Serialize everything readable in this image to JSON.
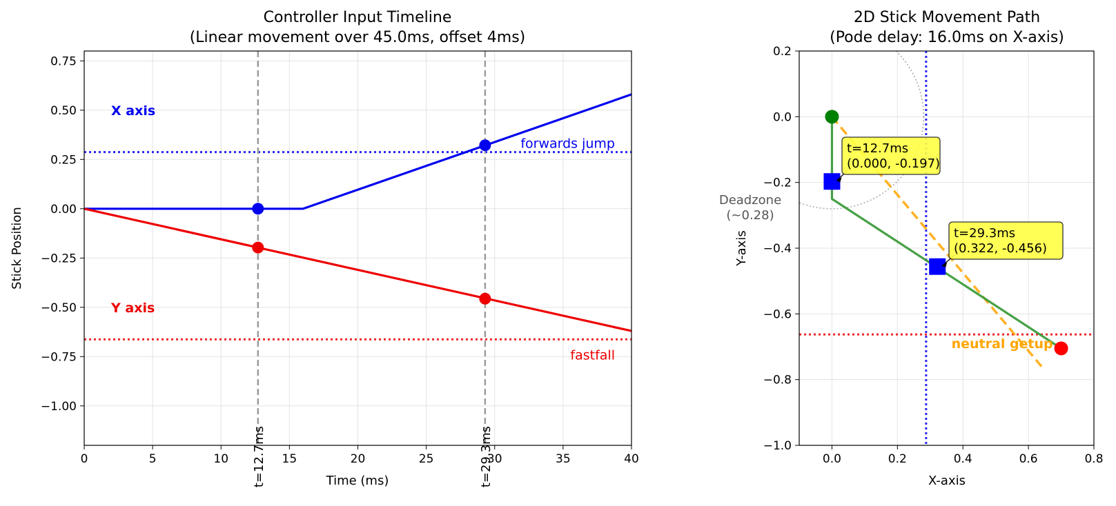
{
  "chart_data": [
    {
      "type": "line",
      "title": "Controller Input Timeline",
      "subtitle": "(Linear movement over 45.0ms, offset 4ms)",
      "xlabel": "Time (ms)",
      "ylabel": "Stick Position",
      "xlim": [
        0,
        40
      ],
      "ylim": [
        -1.2,
        0.8
      ],
      "xticks": [
        0,
        5,
        10,
        15,
        20,
        25,
        30,
        35,
        40
      ],
      "yticks": [
        -1.0,
        -0.75,
        -0.5,
        -0.25,
        0.0,
        0.25,
        0.5,
        0.75
      ],
      "grid": true,
      "series": [
        {
          "name": "X axis",
          "color": "#0000ee",
          "x": [
            0,
            16,
            40
          ],
          "y": [
            0,
            0,
            0.58
          ]
        },
        {
          "name": "Y axis",
          "color": "#ee0000",
          "x": [
            0,
            40
          ],
          "y": [
            0,
            -0.62
          ]
        }
      ],
      "thresholds": [
        {
          "label": "forwards jump",
          "y": 0.2875,
          "color": "#0000ee"
        },
        {
          "label": "fastfall",
          "y": -0.6625,
          "color": "#ee0000"
        }
      ],
      "vlines": [
        {
          "x": 12.7,
          "label": "t=12.7ms"
        },
        {
          "x": 29.3,
          "label": "t=29.3ms"
        }
      ],
      "markers": [
        {
          "x": 12.7,
          "y": 0.0,
          "color": "#0000ee"
        },
        {
          "x": 29.3,
          "y": 0.322,
          "color": "#0000ee"
        },
        {
          "x": 12.7,
          "y": -0.197,
          "color": "#ee0000"
        },
        {
          "x": 29.3,
          "y": -0.456,
          "color": "#ee0000"
        }
      ]
    },
    {
      "type": "scatter",
      "title": "2D Stick Movement Path",
      "subtitle": "(Pode delay: 16.0ms on X-axis)",
      "xlabel": "X-axis",
      "ylabel": "Y-axis",
      "xlim": [
        -0.1,
        0.8
      ],
      "ylim": [
        -1.0,
        0.2
      ],
      "xticks": [
        0.0,
        0.2,
        0.4,
        0.6,
        0.8
      ],
      "yticks": [
        -1.0,
        -0.8,
        -0.6,
        -0.4,
        -0.2,
        0.0,
        0.2
      ],
      "grid": true,
      "path": {
        "color": "#3c9c3c",
        "x": [
          0,
          0,
          0.7
        ],
        "y": [
          0,
          -0.25,
          -0.705
        ]
      },
      "dashed_line": {
        "color": "#ffa500",
        "x": [
          0,
          0.64
        ],
        "y": [
          0,
          -0.76
        ]
      },
      "deadzone": {
        "label": "Deadzone\n(~0.28)",
        "radius": 0.28
      },
      "threshold_lines": [
        {
          "orientation": "vertical",
          "value": 0.2875,
          "color": "#0000ee"
        },
        {
          "orientation": "horizontal",
          "value": -0.6625,
          "color": "#ee0000",
          "label": "neutral getup",
          "label_color": "#ffa500"
        }
      ],
      "start_point": {
        "x": 0,
        "y": 0,
        "color": "#008000"
      },
      "end_point": {
        "x": 0.7,
        "y": -0.705,
        "color": "#ff0000"
      },
      "sample_points": [
        {
          "x": 0.0,
          "y": -0.197,
          "label": "t=12.7ms\n(0.000, -0.197)"
        },
        {
          "x": 0.322,
          "y": -0.456,
          "label": "t=29.3ms\n(0.322, -0.456)"
        }
      ]
    }
  ]
}
